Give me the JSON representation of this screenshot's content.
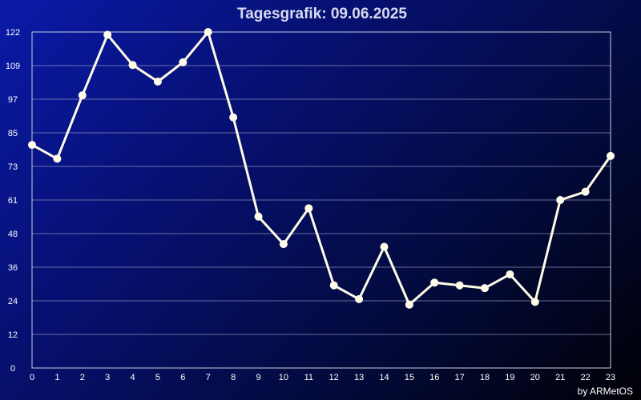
{
  "chart_data": {
    "type": "line",
    "title": "Tagesgrafik: 09.06.2025",
    "xlabel": "",
    "ylabel": "",
    "x": [
      0,
      1,
      2,
      3,
      4,
      5,
      6,
      7,
      8,
      9,
      10,
      11,
      12,
      13,
      14,
      15,
      16,
      17,
      18,
      19,
      20,
      21,
      22,
      23
    ],
    "x_tick_labels": [
      "0",
      "1",
      "2",
      "3",
      "4",
      "5",
      "6",
      "7",
      "8",
      "9",
      "10",
      "11",
      "12",
      "13",
      "14",
      "15",
      "16",
      "17",
      "18",
      "19",
      "20",
      "21",
      "22",
      "23"
    ],
    "y": [
      81,
      76,
      99,
      121,
      110,
      104,
      111,
      122,
      91,
      55,
      45,
      58,
      30,
      25,
      44,
      23,
      31,
      30,
      29,
      34,
      24,
      61,
      64,
      77
    ],
    "y_tick_labels": [
      "0",
      "12",
      "24",
      "36",
      "48",
      "61",
      "73",
      "85",
      "97",
      "109",
      "122"
    ],
    "ylim": [
      0,
      122
    ],
    "grid": true,
    "line_color": "#fffce8",
    "marker_color": "#fffce8"
  },
  "footer": {
    "credit": "by ARMetOS"
  }
}
